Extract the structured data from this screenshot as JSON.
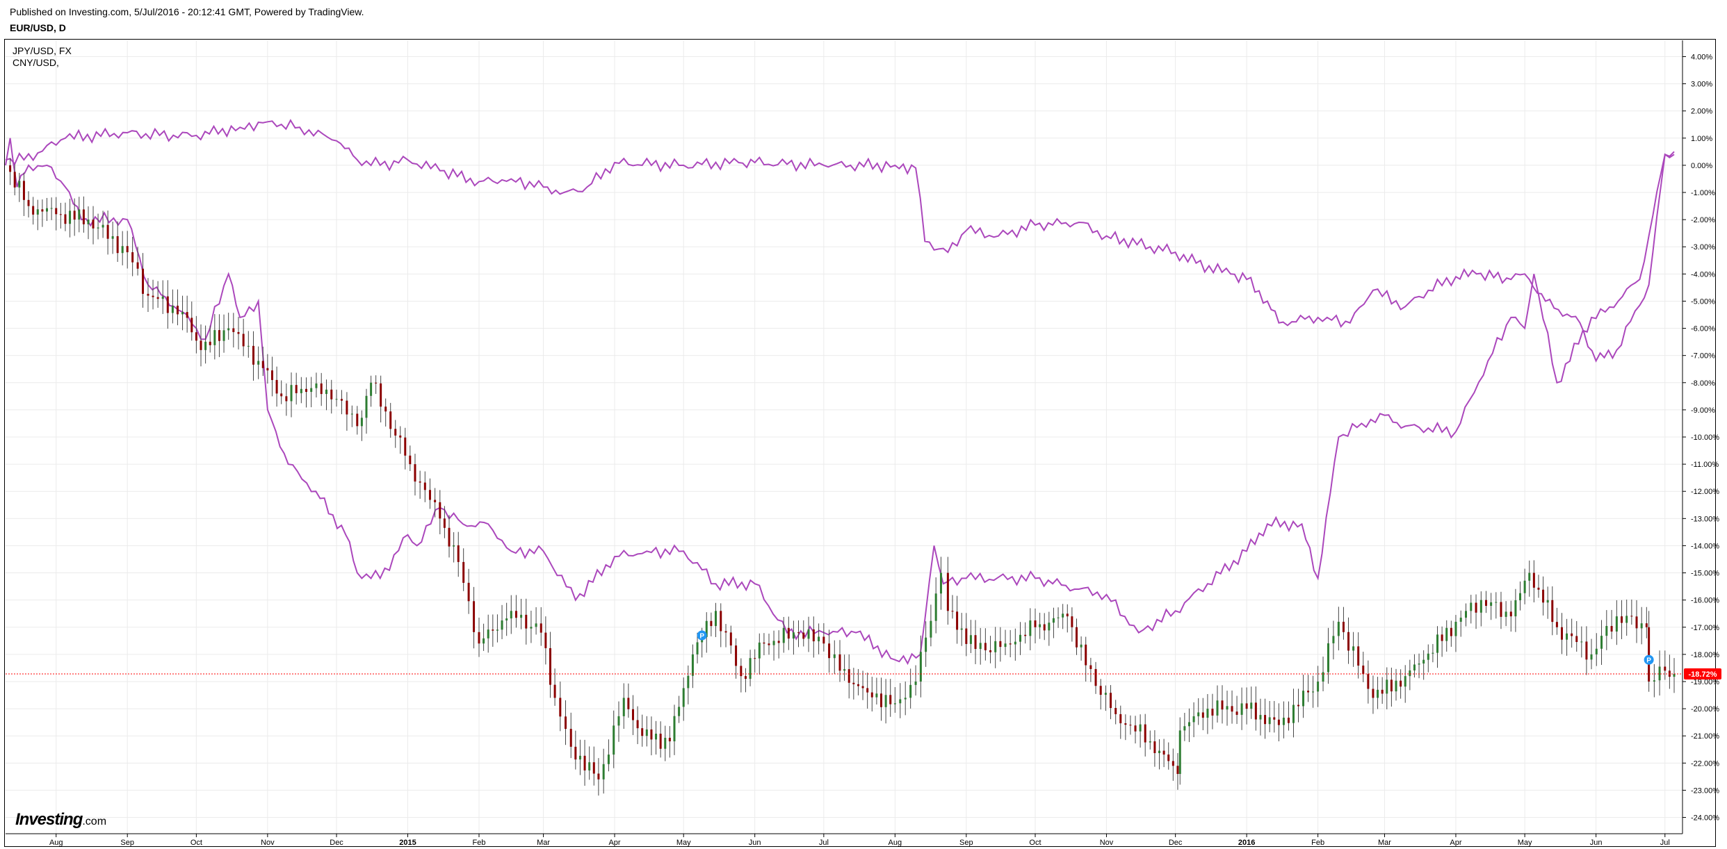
{
  "header": {
    "published": "Published on Investing.com, 5/Jul/2016 - 20:12:41 GMT, Powered by TradingView.",
    "symbol": "EUR/USD, D"
  },
  "legend": [
    "JPY/USD, FX",
    "CNY/USD,"
  ],
  "brand": {
    "main": "Investing",
    "sub": ".com"
  },
  "colors": {
    "line": "#ab47bc",
    "candle_up": "#2e7d32",
    "candle_down": "#8b0000",
    "grid": "#ebebeb",
    "last_price": "#ff0000",
    "marker": "#2196f3"
  },
  "chart_data": {
    "type": "line",
    "title": "EUR/USD, D",
    "y_unit": "%",
    "ylim": [
      -24.6,
      4.6
    ],
    "y_ticks": [
      4,
      3,
      2,
      1,
      0,
      -1,
      -2,
      -3,
      -4,
      -5,
      -6,
      -7,
      -8,
      -9,
      -10,
      -11,
      -12,
      -13,
      -14,
      -15,
      -16,
      -17,
      -18,
      -19,
      -20,
      -21,
      -22,
      -23,
      -24
    ],
    "x_ticks": [
      {
        "label": "Aug",
        "date": "2014-08-01"
      },
      {
        "label": "Sep",
        "date": "2014-09-01"
      },
      {
        "label": "Oct",
        "date": "2014-10-01"
      },
      {
        "label": "Nov",
        "date": "2014-11-01"
      },
      {
        "label": "Dec",
        "date": "2014-12-01"
      },
      {
        "label": "2015",
        "date": "2015-01-01"
      },
      {
        "label": "Feb",
        "date": "2015-02-01"
      },
      {
        "label": "Mar",
        "date": "2015-03-01"
      },
      {
        "label": "Apr",
        "date": "2015-04-01"
      },
      {
        "label": "May",
        "date": "2015-05-01"
      },
      {
        "label": "Jun",
        "date": "2015-06-01"
      },
      {
        "label": "Jul",
        "date": "2015-07-01"
      },
      {
        "label": "Aug",
        "date": "2015-08-01"
      },
      {
        "label": "Sep",
        "date": "2015-09-01"
      },
      {
        "label": "Oct",
        "date": "2015-10-01"
      },
      {
        "label": "Nov",
        "date": "2015-11-01"
      },
      {
        "label": "Dec",
        "date": "2015-12-01"
      },
      {
        "label": "2016",
        "date": "2016-01-01"
      },
      {
        "label": "Feb",
        "date": "2016-02-01"
      },
      {
        "label": "Mar",
        "date": "2016-03-01"
      },
      {
        "label": "Apr",
        "date": "2016-04-01"
      },
      {
        "label": "May",
        "date": "2016-05-01"
      },
      {
        "label": "Jun",
        "date": "2016-06-01"
      },
      {
        "label": "Jul",
        "date": "2016-07-01"
      }
    ],
    "bold_ticks": [
      "2015",
      "2016"
    ],
    "last_value_label": "-18.72%",
    "last_value": -18.72,
    "markers": [
      {
        "date": "2015-05-09",
        "value": -17.3,
        "label": "P"
      },
      {
        "date": "2016-06-24",
        "value": -18.2,
        "label": "P"
      }
    ],
    "series": [
      {
        "name": "EUR/USD, D",
        "style": "candles",
        "x": [
          "2014-07-10",
          "2014-07-20",
          "2014-08-01",
          "2014-08-15",
          "2014-09-01",
          "2014-09-10",
          "2014-09-25",
          "2014-10-03",
          "2014-10-15",
          "2014-10-28",
          "2014-11-07",
          "2014-11-20",
          "2014-12-01",
          "2014-12-10",
          "2014-12-16",
          "2015-01-02",
          "2015-01-15",
          "2015-01-23",
          "2015-02-01",
          "2015-02-15",
          "2015-02-28",
          "2015-03-06",
          "2015-03-13",
          "2015-03-25",
          "2015-04-05",
          "2015-04-13",
          "2015-04-25",
          "2015-05-05",
          "2015-05-15",
          "2015-05-26",
          "2015-06-05",
          "2015-06-20",
          "2015-07-01",
          "2015-07-08",
          "2015-07-20",
          "2015-08-01",
          "2015-08-10",
          "2015-08-21",
          "2015-08-24",
          "2015-09-05",
          "2015-09-18",
          "2015-10-01",
          "2015-10-15",
          "2015-10-23",
          "2015-11-05",
          "2015-11-20",
          "2015-12-02",
          "2015-12-03",
          "2015-12-15",
          "2016-01-01",
          "2016-01-15",
          "2016-02-01",
          "2016-02-10",
          "2016-02-25",
          "2016-03-10",
          "2016-03-18",
          "2016-04-01",
          "2016-04-12",
          "2016-04-25",
          "2016-05-03",
          "2016-05-15",
          "2016-05-30",
          "2016-06-10",
          "2016-06-23",
          "2016-06-24",
          "2016-07-01",
          "2016-07-05"
        ],
        "values": [
          0.0,
          -1.5,
          -1.8,
          -2.0,
          -3.2,
          -4.8,
          -5.4,
          -6.8,
          -6.0,
          -7.2,
          -8.5,
          -8.2,
          -8.6,
          -9.6,
          -8.0,
          -11.0,
          -13.0,
          -14.6,
          -17.6,
          -16.4,
          -17.2,
          -19.6,
          -21.4,
          -22.6,
          -19.6,
          -21.0,
          -21.2,
          -18.0,
          -16.4,
          -18.8,
          -17.6,
          -17.2,
          -17.6,
          -18.6,
          -19.4,
          -19.8,
          -19.0,
          -15.0,
          -16.4,
          -17.8,
          -17.6,
          -17.0,
          -16.6,
          -18.4,
          -20.2,
          -21.2,
          -22.4,
          -20.8,
          -20.0,
          -20.0,
          -20.6,
          -19.0,
          -16.8,
          -19.6,
          -18.8,
          -18.2,
          -16.8,
          -16.0,
          -16.6,
          -15.0,
          -17.0,
          -18.0,
          -16.6,
          -17.0,
          -19.0,
          -18.6,
          -18.72
        ]
      },
      {
        "name": "JPY/USD, FX",
        "style": "line",
        "x": [
          "2014-07-10",
          "2014-07-18",
          "2014-08-05",
          "2014-09-01",
          "2014-09-15",
          "2014-10-01",
          "2014-10-20",
          "2014-11-01",
          "2014-11-15",
          "2014-12-01",
          "2014-12-10",
          "2014-12-20",
          "2015-01-01",
          "2015-01-15",
          "2015-02-01",
          "2015-02-15",
          "2015-03-01",
          "2015-03-10",
          "2015-03-20",
          "2015-04-01",
          "2015-05-01",
          "2015-05-25",
          "2015-06-01",
          "2015-07-01",
          "2015-08-01",
          "2015-08-10",
          "2015-08-14",
          "2015-08-24",
          "2015-09-01",
          "2015-09-15",
          "2015-10-01",
          "2015-10-20",
          "2015-11-01",
          "2015-11-20",
          "2015-12-01",
          "2015-12-10",
          "2015-12-25",
          "2016-01-01",
          "2016-01-10",
          "2016-01-15",
          "2016-02-01",
          "2016-02-05",
          "2016-02-15",
          "2016-02-25",
          "2016-03-10",
          "2016-03-20",
          "2016-04-01",
          "2016-04-10",
          "2016-04-25",
          "2016-05-01",
          "2016-05-03",
          "2016-05-10",
          "2016-05-25",
          "2016-06-01",
          "2016-06-10",
          "2016-06-24",
          "2016-07-01",
          "2016-07-05"
        ],
        "values": [
          0.2,
          0.2,
          1.0,
          1.2,
          1.1,
          1.1,
          1.4,
          1.6,
          1.4,
          0.9,
          0.2,
          0.0,
          0.2,
          -0.2,
          -0.6,
          -0.5,
          -0.8,
          -1.0,
          -0.8,
          0.1,
          0.0,
          0.1,
          0.1,
          0.0,
          0.0,
          -0.1,
          -2.8,
          -3.2,
          -2.4,
          -2.6,
          -2.2,
          -2.1,
          -2.6,
          -3.0,
          -3.2,
          -3.6,
          -4.0,
          -4.2,
          -5.0,
          -5.8,
          -5.6,
          -5.6,
          -5.8,
          -4.6,
          -5.2,
          -4.6,
          -4.1,
          -4.0,
          -4.2,
          -4.0,
          -4.2,
          -5.0,
          -5.8,
          -7.2,
          -6.8,
          -4.4,
          0.4,
          0.4
        ]
      },
      {
        "name": "CNY/USD,",
        "style": "line",
        "x": [
          "2014-07-10",
          "2014-07-12",
          "2014-07-15",
          "2014-07-20",
          "2014-07-28",
          "2014-08-05",
          "2014-08-12",
          "2014-09-01",
          "2014-09-10",
          "2014-09-25",
          "2014-10-05",
          "2014-10-15",
          "2014-10-20",
          "2014-10-28",
          "2014-11-01",
          "2014-11-10",
          "2014-11-22",
          "2014-12-05",
          "2014-12-10",
          "2014-12-20",
          "2015-01-01",
          "2015-01-05",
          "2015-01-15",
          "2015-01-25",
          "2015-02-05",
          "2015-02-15",
          "2015-03-01",
          "2015-03-15",
          "2015-04-01",
          "2015-04-15",
          "2015-05-01",
          "2015-05-15",
          "2015-06-01",
          "2015-06-15",
          "2015-07-01",
          "2015-07-15",
          "2015-08-01",
          "2015-08-12",
          "2015-08-18",
          "2015-08-22",
          "2015-09-01",
          "2015-10-01",
          "2015-10-20",
          "2015-11-01",
          "2015-11-15",
          "2015-12-01",
          "2015-12-15",
          "2016-01-01",
          "2016-01-10",
          "2016-01-25",
          "2016-02-01",
          "2016-02-10",
          "2016-02-20",
          "2016-03-01",
          "2016-03-10",
          "2016-04-01",
          "2016-04-15",
          "2016-04-25",
          "2016-05-01",
          "2016-05-05",
          "2016-05-15",
          "2016-05-30",
          "2016-06-05",
          "2016-06-20",
          "2016-06-24",
          "2016-07-01",
          "2016-07-05"
        ],
        "values": [
          0.0,
          1.0,
          -0.8,
          0.0,
          0.0,
          -0.8,
          -2.0,
          -2.0,
          -4.4,
          -5.4,
          -6.4,
          -4.0,
          -5.6,
          -5.0,
          -9.0,
          -11.0,
          -12.0,
          -13.6,
          -15.0,
          -15.2,
          -13.6,
          -14.0,
          -12.6,
          -13.2,
          -13.2,
          -14.2,
          -14.2,
          -16.0,
          -14.4,
          -14.2,
          -14.2,
          -15.4,
          -15.4,
          -17.2,
          -17.2,
          -17.2,
          -18.2,
          -18.0,
          -14.0,
          -15.4,
          -15.2,
          -15.2,
          -15.6,
          -15.8,
          -17.2,
          -16.4,
          -15.4,
          -14.2,
          -13.2,
          -13.2,
          -15.2,
          -10.0,
          -9.5,
          -9.2,
          -9.6,
          -9.8,
          -7.2,
          -5.6,
          -6.0,
          -4.0,
          -8.0,
          -5.6,
          -5.4,
          -4.2,
          -2.6,
          0.4,
          0.5
        ]
      }
    ]
  }
}
